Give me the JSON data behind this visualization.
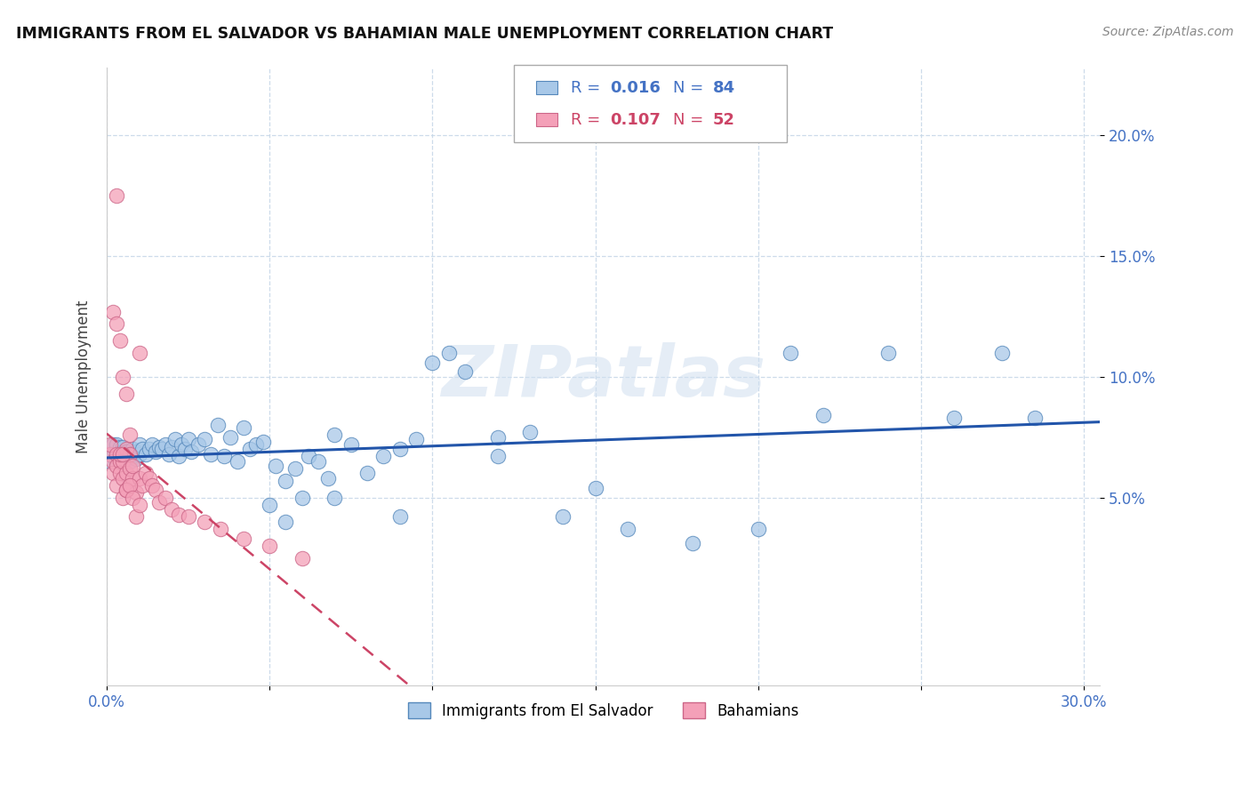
{
  "title": "IMMIGRANTS FROM EL SALVADOR VS BAHAMIAN MALE UNEMPLOYMENT CORRELATION CHART",
  "source": "Source: ZipAtlas.com",
  "ylabel": "Male Unemployment",
  "xlim": [
    0.0,
    0.305
  ],
  "ylim": [
    -0.028,
    0.228
  ],
  "xtick_positions": [
    0.0,
    0.05,
    0.1,
    0.15,
    0.2,
    0.25,
    0.3
  ],
  "xtick_labels": [
    "0.0%",
    "",
    "",
    "",
    "",
    "",
    "30.0%"
  ],
  "ytick_positions": [
    0.05,
    0.1,
    0.15,
    0.2
  ],
  "ytick_labels": [
    "5.0%",
    "10.0%",
    "15.0%",
    "20.0%"
  ],
  "R_blue": "0.016",
  "N_blue": "84",
  "R_pink": "0.107",
  "N_pink": "52",
  "blue_face": "#a8c8e8",
  "blue_edge": "#5588bb",
  "pink_face": "#f4a0b8",
  "pink_edge": "#cc6688",
  "trend_blue_color": "#2255aa",
  "trend_pink_color": "#cc4466",
  "watermark": "ZIPatlas",
  "legend_label_blue": "Immigrants from El Salvador",
  "legend_label_pink": "Bahamians",
  "blue_x": [
    0.001,
    0.001,
    0.002,
    0.002,
    0.003,
    0.003,
    0.003,
    0.004,
    0.004,
    0.004,
    0.005,
    0.005,
    0.005,
    0.006,
    0.006,
    0.007,
    0.007,
    0.008,
    0.008,
    0.009,
    0.009,
    0.01,
    0.01,
    0.011,
    0.012,
    0.013,
    0.014,
    0.015,
    0.016,
    0.017,
    0.018,
    0.019,
    0.02,
    0.021,
    0.022,
    0.023,
    0.024,
    0.025,
    0.026,
    0.028,
    0.03,
    0.032,
    0.034,
    0.036,
    0.038,
    0.04,
    0.042,
    0.044,
    0.046,
    0.048,
    0.05,
    0.052,
    0.055,
    0.058,
    0.06,
    0.062,
    0.065,
    0.068,
    0.07,
    0.075,
    0.08,
    0.085,
    0.09,
    0.095,
    0.1,
    0.105,
    0.11,
    0.12,
    0.13,
    0.14,
    0.15,
    0.16,
    0.18,
    0.2,
    0.21,
    0.22,
    0.24,
    0.26,
    0.275,
    0.285,
    0.055,
    0.07,
    0.09,
    0.12
  ],
  "blue_y": [
    0.068,
    0.065,
    0.067,
    0.072,
    0.065,
    0.068,
    0.072,
    0.067,
    0.071,
    0.068,
    0.064,
    0.069,
    0.071,
    0.066,
    0.069,
    0.065,
    0.068,
    0.067,
    0.07,
    0.066,
    0.069,
    0.068,
    0.072,
    0.07,
    0.068,
    0.07,
    0.072,
    0.069,
    0.071,
    0.07,
    0.072,
    0.068,
    0.071,
    0.074,
    0.067,
    0.072,
    0.07,
    0.074,
    0.069,
    0.072,
    0.074,
    0.068,
    0.08,
    0.067,
    0.075,
    0.065,
    0.079,
    0.07,
    0.072,
    0.073,
    0.047,
    0.063,
    0.057,
    0.062,
    0.05,
    0.067,
    0.065,
    0.058,
    0.076,
    0.072,
    0.06,
    0.067,
    0.07,
    0.074,
    0.106,
    0.11,
    0.102,
    0.067,
    0.077,
    0.042,
    0.054,
    0.037,
    0.031,
    0.037,
    0.11,
    0.084,
    0.11,
    0.083,
    0.11,
    0.083,
    0.04,
    0.05,
    0.042,
    0.075
  ],
  "pink_x": [
    0.001,
    0.001,
    0.002,
    0.002,
    0.003,
    0.003,
    0.003,
    0.004,
    0.004,
    0.005,
    0.005,
    0.005,
    0.006,
    0.006,
    0.006,
    0.007,
    0.007,
    0.007,
    0.008,
    0.008,
    0.009,
    0.01,
    0.011,
    0.012,
    0.013,
    0.014,
    0.015,
    0.016,
    0.018,
    0.02,
    0.022,
    0.025,
    0.03,
    0.035,
    0.042,
    0.05,
    0.06,
    0.003,
    0.004,
    0.005,
    0.006,
    0.007,
    0.008,
    0.009,
    0.01,
    0.002,
    0.003,
    0.004,
    0.007,
    0.01,
    0.005,
    0.006
  ],
  "pink_y": [
    0.068,
    0.072,
    0.065,
    0.06,
    0.068,
    0.063,
    0.055,
    0.065,
    0.06,
    0.065,
    0.058,
    0.05,
    0.06,
    0.053,
    0.07,
    0.055,
    0.062,
    0.068,
    0.058,
    0.063,
    0.052,
    0.058,
    0.055,
    0.06,
    0.058,
    0.055,
    0.053,
    0.048,
    0.05,
    0.045,
    0.043,
    0.042,
    0.04,
    0.037,
    0.033,
    0.03,
    0.025,
    0.175,
    0.068,
    0.068,
    0.053,
    0.055,
    0.05,
    0.042,
    0.047,
    0.127,
    0.122,
    0.115,
    0.076,
    0.11,
    0.1,
    0.093
  ]
}
